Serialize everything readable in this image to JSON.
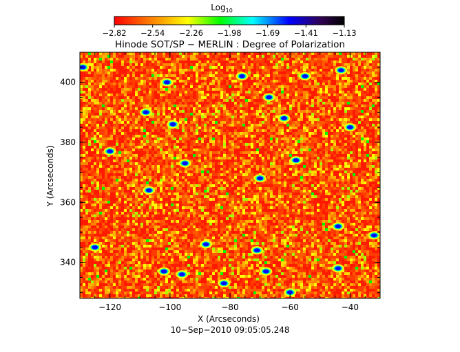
{
  "chart_data": {
    "type": "heatmap",
    "title": "Hinode SOT/SP − MERLIN : Degree of Polarization",
    "colorbar": {
      "label": "Log",
      "label_subscript": "10",
      "ticks": [
        "−2.82",
        "−2.54",
        "−2.26",
        "−1.98",
        "−1.69",
        "−1.41",
        "−1.13"
      ],
      "range": [
        -2.82,
        -1.13
      ],
      "colors": [
        "#ff0000",
        "#ff8000",
        "#ffff00",
        "#00ff00",
        "#00ffff",
        "#0000ff",
        "#200040",
        "#000000"
      ]
    },
    "xlabel": "X (Arcseconds)",
    "ylabel": "Y (Arcseconds)",
    "xlim": [
      -130,
      -30
    ],
    "ylim": [
      328,
      410
    ],
    "x_ticks": [
      -120,
      -100,
      -80,
      -60,
      -40
    ],
    "x_tick_labels": [
      "−120",
      "−100",
      "−80",
      "−60",
      "−40"
    ],
    "y_ticks": [
      340,
      360,
      380,
      400
    ],
    "y_tick_labels": [
      "340",
      "360",
      "380",
      "400"
    ],
    "timestamp": "10−Sep−2010 09:05:05.248",
    "field_description_levels": {
      "background": -2.8,
      "speckle": -2.5,
      "patches": -1.7
    },
    "blue_patches": [
      {
        "x": -129,
        "y": 405
      },
      {
        "x": -101,
        "y": 400
      },
      {
        "x": -108,
        "y": 390
      },
      {
        "x": -99,
        "y": 386
      },
      {
        "x": -76,
        "y": 402
      },
      {
        "x": -67,
        "y": 395
      },
      {
        "x": -62,
        "y": 388
      },
      {
        "x": -55,
        "y": 402
      },
      {
        "x": -43,
        "y": 404
      },
      {
        "x": -40,
        "y": 385
      },
      {
        "x": -58,
        "y": 374
      },
      {
        "x": -70,
        "y": 368
      },
      {
        "x": -107,
        "y": 364
      },
      {
        "x": -95,
        "y": 373
      },
      {
        "x": -120,
        "y": 377
      },
      {
        "x": -44,
        "y": 352
      },
      {
        "x": -32,
        "y": 349
      },
      {
        "x": -71,
        "y": 344
      },
      {
        "x": -88,
        "y": 346
      },
      {
        "x": -102,
        "y": 337
      },
      {
        "x": -96,
        "y": 336
      },
      {
        "x": -68,
        "y": 337
      },
      {
        "x": -44,
        "y": 338
      },
      {
        "x": -60,
        "y": 330
      },
      {
        "x": -82,
        "y": 333
      },
      {
        "x": -125,
        "y": 345
      }
    ]
  }
}
